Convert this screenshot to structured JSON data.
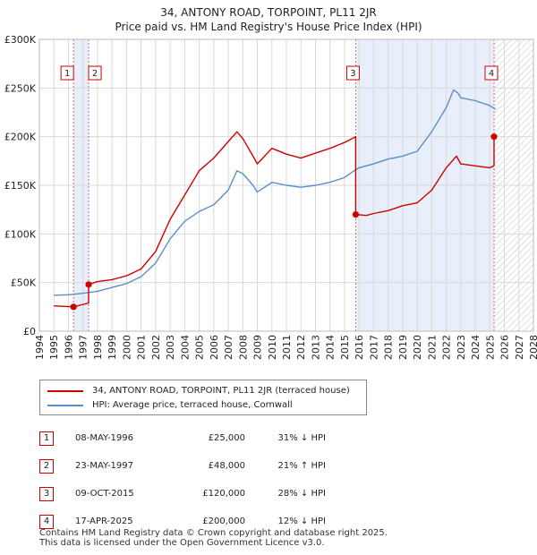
{
  "title_line1": "34, ANTONY ROAD, TORPOINT, PL11 2JR",
  "title_line2": "Price paid vs. HM Land Registry's House Price Index (HPI)",
  "legend": {
    "property_label": "34, ANTONY ROAD, TORPOINT, PL11 2JR (terraced house)",
    "hpi_label": "HPI: Average price, terraced house, Cornwall"
  },
  "colors": {
    "property": "#cc0000",
    "hpi": "#5b8ec9",
    "shade": "#e8eefa",
    "grid": "#d9d9d9",
    "vline": "#e06666"
  },
  "sales": [
    {
      "num": "1",
      "date": "08-MAY-1996",
      "price": "£25,000",
      "hpi": "31% ↓ HPI"
    },
    {
      "num": "2",
      "date": "23-MAY-1997",
      "price": "£48,000",
      "hpi": "21% ↑ HPI"
    },
    {
      "num": "3",
      "date": "09-OCT-2015",
      "price": "£120,000",
      "hpi": "28% ↓ HPI"
    },
    {
      "num": "4",
      "date": "17-APR-2025",
      "price": "£200,000",
      "hpi": "12% ↓ HPI"
    }
  ],
  "footer": {
    "line1": "Contains HM Land Registry data © Crown copyright and database right 2025.",
    "line2": "This data is licensed under the Open Government Licence v3.0."
  },
  "chart_data": {
    "type": "line",
    "xlabel": "",
    "ylabel": "",
    "xlim": [
      1994,
      2028
    ],
    "ylim": [
      0,
      300000
    ],
    "y_ticks": [
      0,
      50000,
      100000,
      150000,
      200000,
      250000,
      300000
    ],
    "y_tick_labels": [
      "£0",
      "£50K",
      "£100K",
      "£150K",
      "£200K",
      "£250K",
      "£300K"
    ],
    "x_ticks": [
      1994,
      1995,
      1996,
      1997,
      1998,
      1999,
      2000,
      2001,
      2002,
      2003,
      2004,
      2005,
      2006,
      2007,
      2008,
      2009,
      2010,
      2011,
      2012,
      2013,
      2014,
      2015,
      2016,
      2017,
      2018,
      2019,
      2020,
      2021,
      2022,
      2023,
      2024,
      2025,
      2026,
      2027,
      2028
    ],
    "x_tick_labels": [
      "1994",
      "1995",
      "1996",
      "1997",
      "1998",
      "1999",
      "2000",
      "2001",
      "2002",
      "2003",
      "2004",
      "2005",
      "2006",
      "2007",
      "2008",
      "2009",
      "2010",
      "2011",
      "2012",
      "2013",
      "2014",
      "2015",
      "2016",
      "2017",
      "2018",
      "2019",
      "2020",
      "2021",
      "2022",
      "2023",
      "2024",
      "2025",
      "2026",
      "2027",
      "2028"
    ],
    "shaded_ranges": [
      [
        1996.35,
        1997.39
      ],
      [
        2015.77,
        2025.29
      ]
    ],
    "hatched_ranges": [
      [
        2025.29,
        2028
      ]
    ],
    "series": [
      {
        "name": "34, ANTONY ROAD, TORPOINT, PL11 2JR (terraced house)",
        "x": [
          1995.0,
          1996.35,
          1996.35,
          1997.39,
          1997.39,
          1998.0,
          1999.0,
          2000.0,
          2001.0,
          2002.0,
          2003.0,
          2004.0,
          2005.0,
          2006.0,
          2007.0,
          2007.6,
          2008.0,
          2008.7,
          2009.0,
          2010.0,
          2011.0,
          2012.0,
          2013.0,
          2014.0,
          2015.0,
          2015.77,
          2015.77,
          2016.5,
          2017.0,
          2018.0,
          2019.0,
          2020.0,
          2021.0,
          2022.0,
          2022.7,
          2023.0,
          2024.0,
          2025.0,
          2025.29,
          2025.29,
          2025.4
        ],
        "values": [
          26000,
          25000,
          25000,
          29000,
          48000,
          51000,
          53000,
          57000,
          64000,
          82000,
          115000,
          140000,
          165000,
          178000,
          195000,
          205000,
          198000,
          180000,
          172000,
          188000,
          182000,
          178000,
          183000,
          188000,
          194000,
          200000,
          120000,
          119000,
          121000,
          124000,
          129000,
          132000,
          145000,
          168000,
          180000,
          172000,
          170000,
          168000,
          170000,
          200000,
          202000
        ]
      },
      {
        "name": "HPI: Average price, terraced house, Cornwall",
        "x": [
          1995.0,
          1996.0,
          1997.0,
          1998.0,
          1999.0,
          2000.0,
          2001.0,
          2002.0,
          2003.0,
          2004.0,
          2005.0,
          2006.0,
          2007.0,
          2007.6,
          2008.0,
          2008.7,
          2009.0,
          2010.0,
          2011.0,
          2012.0,
          2013.0,
          2014.0,
          2015.0,
          2015.77,
          2016.0,
          2017.0,
          2018.0,
          2019.0,
          2020.0,
          2021.0,
          2022.0,
          2022.5,
          2022.8,
          2023.0,
          2024.0,
          2025.0,
          2025.4
        ],
        "values": [
          37000,
          37500,
          39000,
          41000,
          45000,
          49000,
          56000,
          70000,
          95000,
          113000,
          123000,
          130000,
          145000,
          165000,
          162000,
          150000,
          143000,
          153000,
          150000,
          148000,
          150000,
          153000,
          158000,
          166000,
          168000,
          172000,
          177000,
          180000,
          185000,
          205000,
          230000,
          248000,
          245000,
          240000,
          237000,
          232000,
          228000
        ]
      }
    ],
    "sale_points": [
      {
        "label": "1",
        "x": 1996.35,
        "y": 25000
      },
      {
        "label": "2",
        "x": 1997.39,
        "y": 48000
      },
      {
        "label": "3",
        "x": 2015.77,
        "y": 120000
      },
      {
        "label": "4",
        "x": 2025.29,
        "y": 200000
      }
    ]
  }
}
